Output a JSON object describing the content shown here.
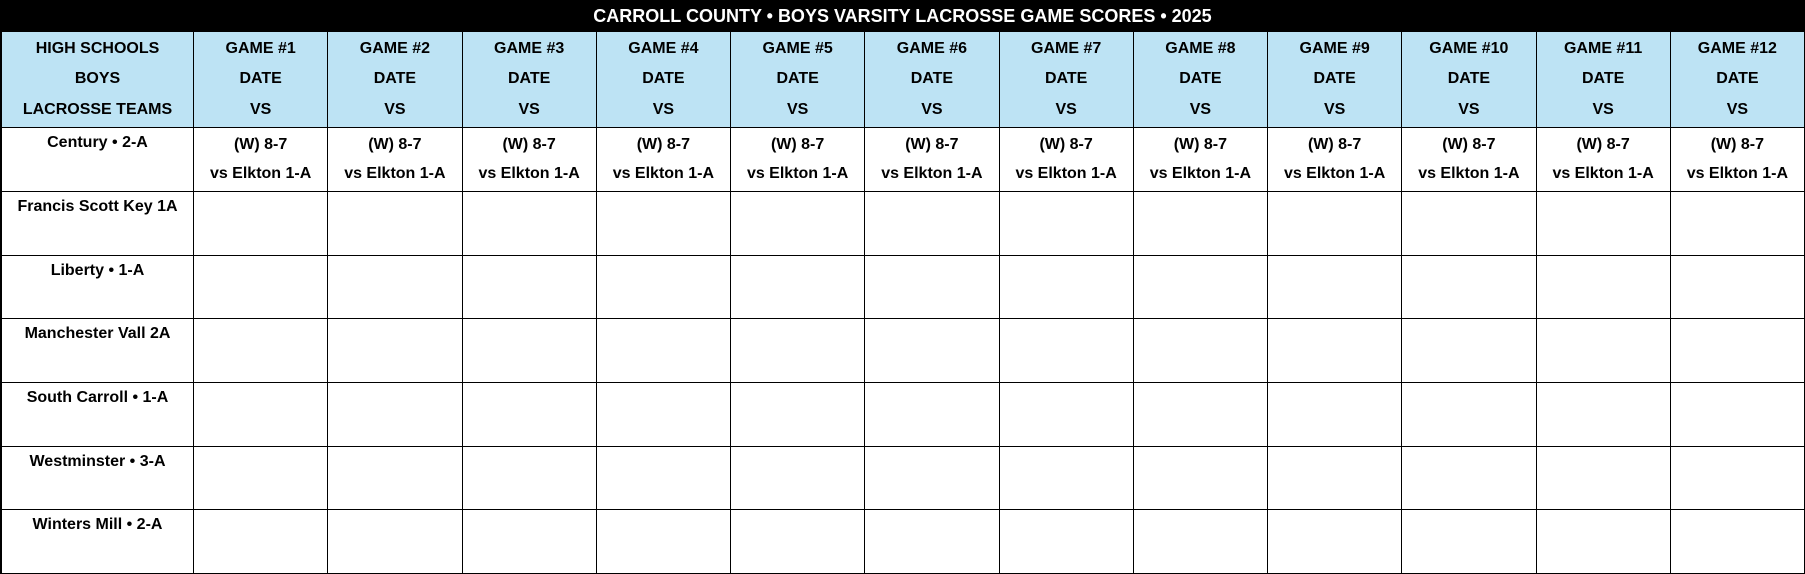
{
  "title": "CARROLL COUNTY • BOYS VARSITY LACROSSE GAME SCORES • 2025",
  "header": {
    "team_column": [
      "HIGH SCHOOLS",
      "BOYS",
      "LACROSSE TEAMS"
    ],
    "games": [
      [
        "GAME #1",
        "DATE",
        "VS"
      ],
      [
        "GAME #2",
        "DATE",
        "VS"
      ],
      [
        "GAME #3",
        "DATE",
        "VS"
      ],
      [
        "GAME #4",
        "DATE",
        "VS"
      ],
      [
        "GAME #5",
        "DATE",
        "VS"
      ],
      [
        "GAME #6",
        "DATE",
        "VS"
      ],
      [
        "GAME #7",
        "DATE",
        "VS"
      ],
      [
        "GAME #8",
        "DATE",
        "VS"
      ],
      [
        "GAME #9",
        "DATE",
        "VS"
      ],
      [
        "GAME #10",
        "DATE",
        "VS"
      ],
      [
        "GAME #11",
        "DATE",
        "VS"
      ],
      [
        "GAME #12",
        "DATE",
        "VS"
      ]
    ]
  },
  "rows": [
    {
      "team": "Century • 2-A",
      "games": [
        {
          "result": "(W) 8-7",
          "opponent": "vs Elkton 1-A"
        },
        {
          "result": "(W) 8-7",
          "opponent": "vs Elkton 1-A"
        },
        {
          "result": "(W) 8-7",
          "opponent": "vs Elkton 1-A"
        },
        {
          "result": "(W) 8-7",
          "opponent": "vs Elkton 1-A"
        },
        {
          "result": "(W) 8-7",
          "opponent": "vs Elkton 1-A"
        },
        {
          "result": "(W) 8-7",
          "opponent": "vs Elkton 1-A"
        },
        {
          "result": "(W) 8-7",
          "opponent": "vs Elkton 1-A"
        },
        {
          "result": "(W) 8-7",
          "opponent": "vs Elkton 1-A"
        },
        {
          "result": "(W) 8-7",
          "opponent": "vs Elkton 1-A"
        },
        {
          "result": "(W) 8-7",
          "opponent": "vs Elkton 1-A"
        },
        {
          "result": "(W) 8-7",
          "opponent": "vs Elkton 1-A"
        },
        {
          "result": "(W) 8-7",
          "opponent": "vs Elkton 1-A"
        }
      ]
    },
    {
      "team": "Francis Scott Key 1A"
    },
    {
      "team": "Liberty • 1-A"
    },
    {
      "team": "Manchester Vall 2A"
    },
    {
      "team": "South Carroll • 1-A"
    },
    {
      "team": "Westminster • 3-A"
    },
    {
      "team": "Winters Mill • 2-A"
    }
  ]
}
